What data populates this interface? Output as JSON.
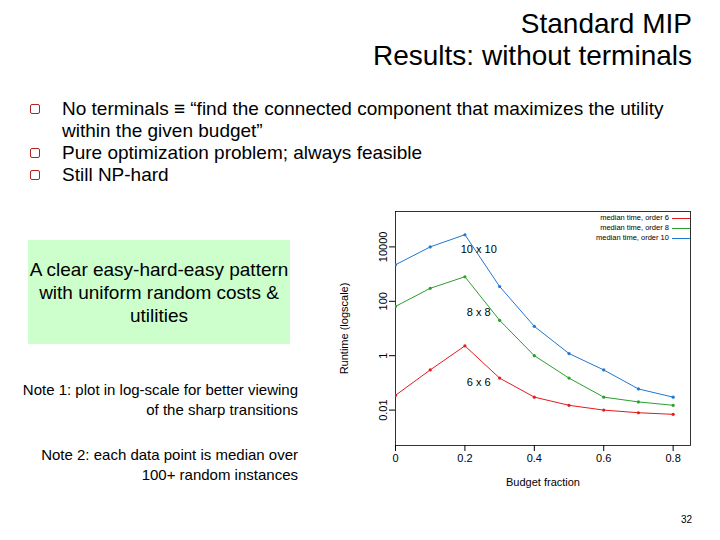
{
  "slide": {
    "title": [
      "Standard MIP",
      "Results: without terminals"
    ],
    "bullets": [
      "No terminals ≡ “find the connected component that maximizes the utility within the given budget”",
      "Pure optimization problem; always feasible",
      "Still NP-hard"
    ],
    "callout": "A clear easy-hard-easy pattern with uniform random costs & utilities",
    "notes": [
      "Note 1: plot in log-scale for better viewing of the sharp transitions",
      "Note 2: each data point is median over 100+ random instances"
    ],
    "page": "32"
  },
  "chart_data": {
    "type": "line",
    "x_label": "Budget fraction",
    "y_label": "Runtime (logscale)",
    "log": "y",
    "grid": false,
    "legend": "top-right",
    "x": [
      0,
      0.1,
      0.2,
      0.3,
      0.4,
      0.5,
      0.6,
      0.7,
      0.8
    ],
    "series": [
      {
        "name": "median time, order 6",
        "color": "#e41a1c",
        "marker": "dot",
        "line_style": "solid",
        "values": [
          0.035,
          0.3,
          2.3,
          0.15,
          0.03,
          0.015,
          0.01,
          0.008,
          0.007
        ]
      },
      {
        "name": "median time, order 8",
        "color": "#2ca02c",
        "marker": "dot",
        "line_style": "solid",
        "values": [
          65,
          300,
          800,
          20,
          1,
          0.15,
          0.03,
          0.02,
          0.015
        ]
      },
      {
        "name": "median time, order 10",
        "color": "#1f77d4",
        "marker": "dot",
        "line_style": "solid",
        "values": [
          2200,
          10000,
          28000,
          350,
          12,
          1.2,
          0.3,
          0.06,
          0.03
        ]
      }
    ],
    "annotations": [
      {
        "text": "10 x 10",
        "x": 0.24,
        "y": 8000
      },
      {
        "text": "8 x 8",
        "x": 0.24,
        "y": 40
      },
      {
        "text": "6 x 6",
        "x": 0.24,
        "y": 0.1
      }
    ],
    "xlim": [
      0,
      0.85
    ],
    "xticks": [
      0,
      0.2,
      0.4,
      0.6,
      0.8
    ],
    "ylim": [
      0.0005,
      200000
    ],
    "yticks": [
      0.01,
      1,
      100,
      10000
    ]
  }
}
